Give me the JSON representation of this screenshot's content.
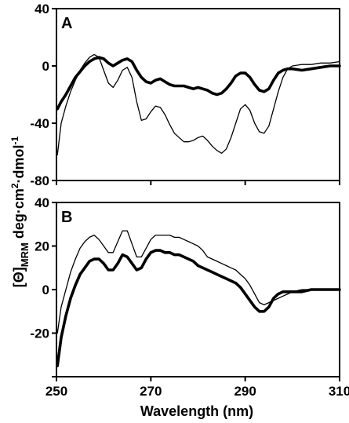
{
  "chart_data": [
    {
      "type": "line",
      "panel_label": "A",
      "xlim": [
        250,
        310
      ],
      "ylim": [
        -80,
        40
      ],
      "xticks": [
        250,
        270,
        290,
        310
      ],
      "yticks": [
        -80,
        -40,
        0,
        40
      ],
      "ytick_labels": [
        "-80",
        "-40",
        "0",
        "40"
      ],
      "series": [
        {
          "style": "thin",
          "color": "#000000",
          "x": [
            250.2,
            251,
            252,
            253,
            254,
            255,
            256,
            257,
            258,
            259,
            260,
            261,
            262,
            263,
            264,
            265,
            266,
            267,
            268,
            269,
            270,
            271,
            272,
            273,
            274,
            275,
            276,
            277,
            278,
            279,
            280,
            281,
            282,
            283,
            284,
            285,
            286,
            287,
            288,
            289,
            290,
            291,
            292,
            293,
            294,
            295,
            296,
            297,
            298,
            299,
            300,
            302,
            304,
            306,
            308,
            310
          ],
          "y": [
            -62,
            -40,
            -28,
            -18,
            -10,
            -3,
            2,
            6,
            8,
            6,
            -3,
            -12,
            -15,
            -10,
            -3,
            -1,
            -8,
            -25,
            -38,
            -37,
            -32,
            -28,
            -29,
            -34,
            -41,
            -47,
            -50,
            -53,
            -53,
            -52,
            -50,
            -49,
            -52,
            -56,
            -59,
            -61,
            -58,
            -50,
            -40,
            -30,
            -27,
            -31,
            -40,
            -46,
            -47,
            -42,
            -30,
            -18,
            -8,
            -2,
            0,
            1,
            1,
            2,
            2,
            3
          ]
        },
        {
          "style": "thick",
          "color": "#000000",
          "x": [
            250.2,
            251,
            252,
            253,
            254,
            255,
            256,
            257,
            258,
            259,
            260,
            261,
            262,
            263,
            264,
            265,
            266,
            267,
            268,
            269,
            270,
            271,
            272,
            273,
            274,
            275,
            276,
            277,
            278,
            279,
            280,
            281,
            282,
            283,
            284,
            285,
            286,
            287,
            288,
            289,
            290,
            291,
            292,
            293,
            294,
            295,
            296,
            297,
            298,
            299,
            300,
            302,
            304,
            306,
            308,
            310
          ],
          "y": [
            -30,
            -25,
            -20,
            -14,
            -8,
            -4,
            0,
            3,
            5,
            6,
            5,
            2,
            0,
            2,
            4,
            5,
            3,
            -3,
            -8,
            -11,
            -12,
            -10,
            -9,
            -11,
            -13,
            -14,
            -14,
            -14,
            -15,
            -16,
            -15,
            -16,
            -17,
            -19,
            -20,
            -19,
            -16,
            -12,
            -7,
            -5,
            -5,
            -8,
            -13,
            -17,
            -18,
            -16,
            -10,
            -5,
            -3,
            -2,
            -2,
            -3,
            -2,
            -1,
            0,
            0
          ]
        }
      ]
    },
    {
      "type": "line",
      "panel_label": "B",
      "xlim": [
        250,
        310
      ],
      "ylim": [
        -40,
        40
      ],
      "xticks": [
        250,
        270,
        290,
        310
      ],
      "xtick_labels": [
        "250",
        "270",
        "290",
        "310"
      ],
      "yticks": [
        -40,
        -20,
        0,
        20,
        40
      ],
      "ytick_labels": [
        "",
        "-20",
        "0",
        "20",
        "40"
      ],
      "series": [
        {
          "style": "thin",
          "color": "#000000",
          "x": [
            250.2,
            251,
            252,
            253,
            254,
            255,
            256,
            257,
            258,
            259,
            260,
            261,
            262,
            263,
            264,
            265,
            266,
            267,
            268,
            269,
            270,
            271,
            272,
            273,
            274,
            275,
            276,
            277,
            278,
            279,
            280,
            281,
            282,
            283,
            284,
            285,
            286,
            287,
            288,
            289,
            290,
            291,
            292,
            293,
            294,
            295,
            296,
            297,
            298,
            299,
            300,
            302,
            304,
            306,
            308,
            310
          ],
          "y": [
            -20,
            -8,
            0,
            8,
            14,
            19,
            22,
            24,
            25,
            23,
            20,
            17,
            17,
            22,
            27,
            27,
            21,
            15,
            15,
            19,
            23,
            25,
            25,
            25,
            25,
            24,
            24,
            23,
            22,
            21,
            20,
            18,
            15,
            14,
            13,
            12,
            11,
            10,
            9,
            7,
            5,
            2,
            -2,
            -6,
            -7,
            -6,
            -5,
            -4,
            -3,
            -2,
            -1,
            0,
            0,
            0,
            0,
            0
          ]
        },
        {
          "style": "thick",
          "color": "#000000",
          "x": [
            250.2,
            251,
            252,
            253,
            254,
            255,
            256,
            257,
            258,
            259,
            260,
            261,
            262,
            263,
            264,
            265,
            266,
            267,
            268,
            269,
            270,
            271,
            272,
            273,
            274,
            275,
            276,
            277,
            278,
            279,
            280,
            281,
            282,
            283,
            284,
            285,
            286,
            287,
            288,
            289,
            290,
            291,
            292,
            293,
            294,
            295,
            296,
            297,
            298,
            299,
            300,
            302,
            304,
            306,
            308,
            310
          ],
          "y": [
            -35,
            -22,
            -12,
            -4,
            2,
            7,
            10,
            13,
            14,
            14,
            12,
            9,
            9,
            12,
            16,
            15,
            12,
            9,
            10,
            14,
            17,
            18,
            18,
            17,
            17,
            16,
            16,
            15,
            14,
            13,
            11,
            10,
            9,
            8,
            7,
            6,
            5,
            4,
            3,
            1,
            -2,
            -5,
            -8,
            -10,
            -10,
            -8,
            -4,
            -2,
            -1,
            -1,
            -1,
            -1,
            0,
            0,
            0,
            0
          ]
        }
      ]
    }
  ],
  "ylabel_main": "[Θ]",
  "ylabel_sub": "MRM",
  "ylabel_units": " deg·cm",
  "ylabel_sup1": "2",
  "ylabel_units2": "·dmol",
  "ylabel_sup2": "-1",
  "xlabel": "Wavelength (nm)"
}
